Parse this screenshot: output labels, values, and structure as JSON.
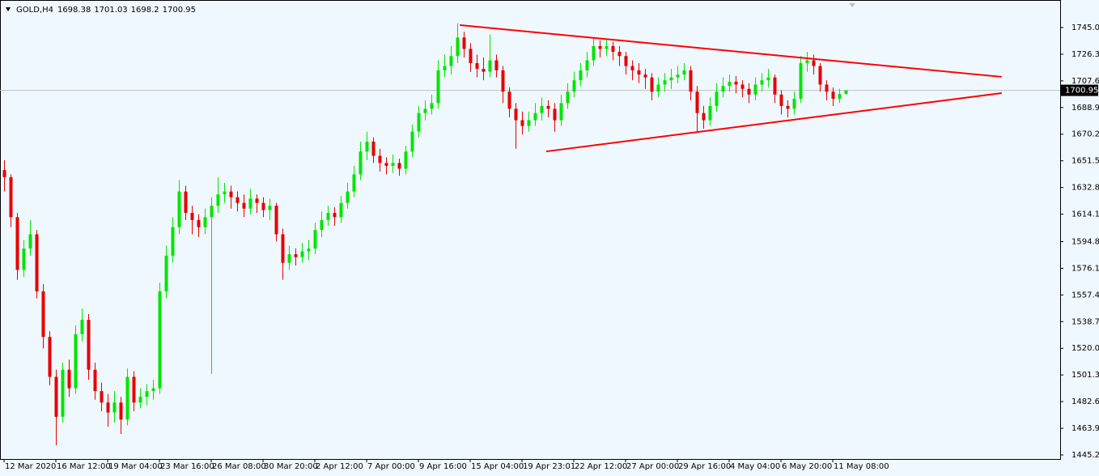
{
  "chart_data": {
    "type": "candlestick",
    "symbol": "GOLD,H4",
    "up_color": "#00e600",
    "down_color": "#e60000",
    "trendline_color": "#ff0000",
    "price_line_color": "#c0c0c0",
    "open": [
      1645,
      1640,
      1612,
      1575,
      1590,
      1600,
      1560,
      1528,
      1500,
      1472,
      1505,
      1492,
      1530,
      1540,
      1505,
      1490,
      1482,
      1475,
      1482,
      1470,
      1500,
      1482,
      1486,
      1490,
      1492,
      1560,
      1585,
      1605,
      1630,
      1615,
      1610,
      1605,
      1612,
      1620,
      1628,
      1630,
      1626,
      1622,
      1618,
      1625,
      1622,
      1617,
      1620,
      1600,
      1580,
      1586,
      1584,
      1588,
      1590,
      1603,
      1610,
      1615,
      1612,
      1622,
      1630,
      1642,
      1658,
      1665,
      1655,
      1650,
      1648,
      1650,
      1646,
      1658,
      1672,
      1685,
      1688,
      1692,
      1715,
      1718,
      1725,
      1738,
      1730,
      1720,
      1716,
      1714,
      1722,
      1715,
      1700,
      1688,
      1680,
      1676,
      1680,
      1685,
      1690,
      1688,
      1680,
      1692,
      1700,
      1708,
      1715,
      1722,
      1732,
      1730,
      1732,
      1728,
      1725,
      1718,
      1715,
      1712,
      1710,
      1700,
      1705,
      1708,
      1710,
      1712,
      1715,
      1700,
      1685,
      1680,
      1690,
      1700,
      1704,
      1707,
      1705,
      1702,
      1698,
      1705,
      1708,
      1710,
      1698,
      1690,
      1688,
      1695,
      1720,
      1722,
      1718,
      1705,
      1700,
      1695,
      1698.38
    ],
    "high": [
      1652,
      1642,
      1615,
      1596,
      1610,
      1603,
      1565,
      1532,
      1505,
      1510,
      1512,
      1536,
      1548,
      1544,
      1510,
      1496,
      1488,
      1490,
      1486,
      1506,
      1504,
      1492,
      1495,
      1498,
      1566,
      1592,
      1612,
      1638,
      1634,
      1620,
      1614,
      1618,
      1626,
      1640,
      1636,
      1634,
      1630,
      1628,
      1632,
      1628,
      1626,
      1625,
      1622,
      1604,
      1592,
      1590,
      1594,
      1596,
      1608,
      1616,
      1620,
      1619,
      1627,
      1636,
      1648,
      1665,
      1672,
      1668,
      1660,
      1654,
      1656,
      1653,
      1662,
      1677,
      1690,
      1694,
      1698,
      1722,
      1726,
      1732,
      1748,
      1742,
      1734,
      1726,
      1724,
      1740,
      1726,
      1718,
      1703,
      1692,
      1686,
      1686,
      1692,
      1696,
      1694,
      1692,
      1698,
      1706,
      1714,
      1720,
      1728,
      1738,
      1736,
      1737,
      1735,
      1732,
      1728,
      1722,
      1720,
      1716,
      1713,
      1710,
      1713,
      1716,
      1718,
      1720,
      1718,
      1704,
      1690,
      1696,
      1706,
      1710,
      1712,
      1711,
      1708,
      1706,
      1710,
      1713,
      1716,
      1712,
      1701,
      1694,
      1700,
      1725,
      1728,
      1726,
      1720,
      1708,
      1703,
      1702,
      1701.03
    ],
    "low": [
      1630,
      1605,
      1568,
      1570,
      1585,
      1555,
      1520,
      1494,
      1452,
      1468,
      1486,
      1488,
      1525,
      1498,
      1484,
      1476,
      1465,
      1468,
      1460,
      1466,
      1476,
      1478,
      1480,
      1484,
      1488,
      1555,
      1580,
      1600,
      1610,
      1600,
      1598,
      1600,
      1502,
      1615,
      1622,
      1618,
      1616,
      1612,
      1614,
      1615,
      1612,
      1610,
      1595,
      1568,
      1575,
      1578,
      1580,
      1582,
      1586,
      1598,
      1606,
      1606,
      1608,
      1618,
      1626,
      1638,
      1652,
      1650,
      1644,
      1642,
      1643,
      1641,
      1642,
      1654,
      1668,
      1680,
      1684,
      1688,
      1710,
      1712,
      1720,
      1724,
      1714,
      1710,
      1708,
      1710,
      1710,
      1692,
      1682,
      1660,
      1670,
      1672,
      1676,
      1680,
      1682,
      1672,
      1676,
      1688,
      1696,
      1704,
      1710,
      1718,
      1724,
      1725,
      1722,
      1718,
      1712,
      1708,
      1706,
      1702,
      1694,
      1696,
      1700,
      1702,
      1706,
      1708,
      1694,
      1672,
      1674,
      1676,
      1686,
      1696,
      1700,
      1699,
      1696,
      1692,
      1694,
      1700,
      1703,
      1692,
      1684,
      1682,
      1684,
      1692,
      1714,
      1712,
      1700,
      1694,
      1690,
      1692,
      1698.2
    ],
    "close": [
      1640,
      1612,
      1575,
      1590,
      1600,
      1560,
      1528,
      1500,
      1472,
      1505,
      1492,
      1530,
      1540,
      1505,
      1490,
      1482,
      1475,
      1482,
      1470,
      1500,
      1482,
      1486,
      1490,
      1492,
      1560,
      1585,
      1605,
      1630,
      1615,
      1610,
      1605,
      1612,
      1620,
      1628,
      1630,
      1626,
      1622,
      1618,
      1625,
      1622,
      1617,
      1620,
      1600,
      1580,
      1586,
      1584,
      1588,
      1590,
      1603,
      1610,
      1615,
      1612,
      1622,
      1630,
      1642,
      1658,
      1665,
      1655,
      1650,
      1648,
      1650,
      1646,
      1658,
      1672,
      1685,
      1688,
      1692,
      1715,
      1718,
      1725,
      1738,
      1730,
      1720,
      1716,
      1714,
      1722,
      1715,
      1700,
      1688,
      1680,
      1676,
      1680,
      1685,
      1690,
      1688,
      1680,
      1692,
      1700,
      1708,
      1715,
      1722,
      1732,
      1730,
      1732,
      1728,
      1725,
      1718,
      1715,
      1712,
      1710,
      1700,
      1705,
      1708,
      1710,
      1712,
      1715,
      1700,
      1685,
      1680,
      1690,
      1700,
      1704,
      1707,
      1705,
      1702,
      1698,
      1705,
      1708,
      1710,
      1698,
      1690,
      1688,
      1695,
      1720,
      1722,
      1718,
      1705,
      1700,
      1695,
      1698.38,
      1700.95
    ],
    "xlim": [
      -0.625,
      163.125
    ],
    "xticks": [
      {
        "value": 0,
        "label": "12 Mar 2020"
      },
      {
        "value": 8,
        "label": "16 Mar 12:00"
      },
      {
        "value": 16,
        "label": "19 Mar 04:00"
      },
      {
        "value": 24,
        "label": "23 Mar 16:00"
      },
      {
        "value": 32,
        "label": "26 Mar 08:00"
      },
      {
        "value": 40,
        "label": "30 Mar 20:00"
      },
      {
        "value": 48,
        "label": "2 Apr 12:00"
      },
      {
        "value": 56,
        "label": "7 Apr 00:00"
      },
      {
        "value": 64,
        "label": "9 Apr 16:00"
      },
      {
        "value": 72,
        "label": "15 Apr 04:00"
      },
      {
        "value": 80,
        "label": "19 Apr 23:01"
      },
      {
        "value": 88,
        "label": "22 Apr 12:00"
      },
      {
        "value": 96,
        "label": "27 Apr 00:00"
      },
      {
        "value": 104,
        "label": "29 Apr 16:00"
      },
      {
        "value": 112,
        "label": "4 May 04:00"
      },
      {
        "value": 120,
        "label": "6 May 20:00"
      },
      {
        "value": 128,
        "label": "11 May 08:00"
      }
    ],
    "ylim": [
      1442.4,
      1764.3
    ],
    "yticks": [
      {
        "value": 1745,
        "label": "1745.00"
      },
      {
        "value": 1726.3,
        "label": "1726.30"
      },
      {
        "value": 1707.6,
        "label": "1707.60"
      },
      {
        "value": 1688.9,
        "label": "1688.90"
      },
      {
        "value": 1670.2,
        "label": "1670.20"
      },
      {
        "value": 1651.5,
        "label": "1651.50"
      },
      {
        "value": 1632.8,
        "label": "1632.80"
      },
      {
        "value": 1614.1,
        "label": "1614.10"
      },
      {
        "value": 1594.85,
        "label": "1594.85"
      },
      {
        "value": 1576.15,
        "label": "1576.15"
      },
      {
        "value": 1557.45,
        "label": "1557.45"
      },
      {
        "value": 1538.75,
        "label": "1538.75"
      },
      {
        "value": 1520.05,
        "label": "1520.05"
      },
      {
        "value": 1501.35,
        "label": "1501.35"
      },
      {
        "value": 1482.65,
        "label": "1482.65"
      },
      {
        "value": 1463.95,
        "label": "1463.95"
      },
      {
        "value": 1445.25,
        "label": "1445.25"
      }
    ],
    "trendlines": [
      {
        "x": [
          70.4,
          154.1
        ],
        "y": [
          1746.7,
          1710.4
        ]
      },
      {
        "x": [
          83.75,
          154.1
        ],
        "y": [
          1658.1,
          1699
        ]
      }
    ]
  }
}
